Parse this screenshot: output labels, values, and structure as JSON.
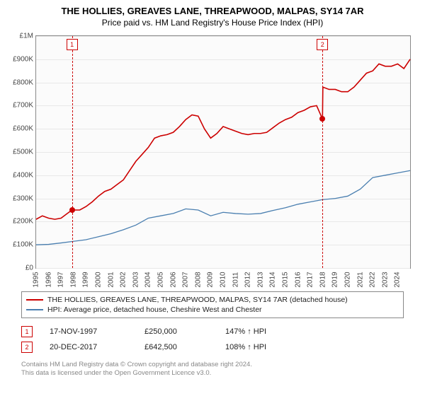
{
  "chart": {
    "type": "line",
    "title": "THE HOLLIES, GREAVES LANE, THREAPWOOD, MALPAS, SY14 7AR",
    "subtitle": "Price paid vs. HM Land Registry's House Price Index (HPI)",
    "background_color": "#ffffff",
    "plot_bg": "#fbfbfb",
    "grid_color": "#e8e8e8",
    "border_color": "#888888",
    "title_fontsize": 13,
    "subtitle_fontsize": 12,
    "tick_fontsize": 10,
    "y": {
      "min": 0,
      "max": 1000000,
      "ticks": [
        0,
        100000,
        200000,
        300000,
        400000,
        500000,
        600000,
        700000,
        800000,
        900000,
        1000000
      ],
      "labels": [
        "£0",
        "£100K",
        "£200K",
        "£300K",
        "£400K",
        "£500K",
        "£600K",
        "£700K",
        "£800K",
        "£900K",
        "£1M"
      ]
    },
    "x": {
      "min": 1995,
      "max": 2025,
      "ticks": [
        1995,
        1996,
        1997,
        1998,
        1999,
        2000,
        2001,
        2002,
        2003,
        2004,
        2005,
        2006,
        2007,
        2008,
        2009,
        2010,
        2011,
        2012,
        2013,
        2014,
        2015,
        2016,
        2017,
        2018,
        2019,
        2020,
        2021,
        2022,
        2023,
        2024
      ]
    },
    "series": [
      {
        "name": "THE HOLLIES, GREAVES LANE, THREAPWOOD, MALPAS, SY14 7AR (detached house)",
        "color": "#cc0000",
        "line_width": 1.6,
        "data": [
          [
            1995,
            210000
          ],
          [
            1995.5,
            225000
          ],
          [
            1996,
            215000
          ],
          [
            1996.5,
            210000
          ],
          [
            1997,
            215000
          ],
          [
            1997.5,
            235000
          ],
          [
            1997.88,
            250000
          ],
          [
            1998.5,
            250000
          ],
          [
            1999,
            265000
          ],
          [
            1999.5,
            285000
          ],
          [
            2000,
            310000
          ],
          [
            2000.5,
            330000
          ],
          [
            2001,
            340000
          ],
          [
            2001.5,
            360000
          ],
          [
            2002,
            380000
          ],
          [
            2002.5,
            420000
          ],
          [
            2003,
            460000
          ],
          [
            2003.5,
            490000
          ],
          [
            2004,
            520000
          ],
          [
            2004.5,
            560000
          ],
          [
            2005,
            570000
          ],
          [
            2005.5,
            575000
          ],
          [
            2006,
            585000
          ],
          [
            2006.5,
            610000
          ],
          [
            2007,
            640000
          ],
          [
            2007.5,
            660000
          ],
          [
            2008,
            655000
          ],
          [
            2008.5,
            600000
          ],
          [
            2009,
            560000
          ],
          [
            2009.5,
            580000
          ],
          [
            2010,
            610000
          ],
          [
            2010.5,
            600000
          ],
          [
            2011,
            590000
          ],
          [
            2011.5,
            580000
          ],
          [
            2012,
            575000
          ],
          [
            2012.5,
            580000
          ],
          [
            2013,
            580000
          ],
          [
            2013.5,
            585000
          ],
          [
            2014,
            605000
          ],
          [
            2014.5,
            625000
          ],
          [
            2015,
            640000
          ],
          [
            2015.5,
            650000
          ],
          [
            2016,
            670000
          ],
          [
            2016.5,
            680000
          ],
          [
            2017,
            695000
          ],
          [
            2017.5,
            700000
          ],
          [
            2017.97,
            642500
          ],
          [
            2018,
            780000
          ],
          [
            2018.5,
            770000
          ],
          [
            2019,
            770000
          ],
          [
            2019.5,
            760000
          ],
          [
            2020,
            760000
          ],
          [
            2020.5,
            780000
          ],
          [
            2021,
            810000
          ],
          [
            2021.5,
            840000
          ],
          [
            2022,
            850000
          ],
          [
            2022.5,
            880000
          ],
          [
            2023,
            870000
          ],
          [
            2023.5,
            870000
          ],
          [
            2024,
            880000
          ],
          [
            2024.5,
            860000
          ],
          [
            2025,
            900000
          ]
        ]
      },
      {
        "name": "HPI: Average price, detached house, Cheshire West and Chester",
        "color": "#4a7fb0",
        "line_width": 1.3,
        "data": [
          [
            1995,
            100000
          ],
          [
            1996,
            102000
          ],
          [
            1997,
            108000
          ],
          [
            1998,
            115000
          ],
          [
            1999,
            122000
          ],
          [
            2000,
            135000
          ],
          [
            2001,
            148000
          ],
          [
            2002,
            165000
          ],
          [
            2003,
            185000
          ],
          [
            2004,
            215000
          ],
          [
            2005,
            225000
          ],
          [
            2006,
            235000
          ],
          [
            2007,
            255000
          ],
          [
            2008,
            250000
          ],
          [
            2009,
            225000
          ],
          [
            2010,
            240000
          ],
          [
            2011,
            235000
          ],
          [
            2012,
            232000
          ],
          [
            2013,
            235000
          ],
          [
            2014,
            248000
          ],
          [
            2015,
            260000
          ],
          [
            2016,
            275000
          ],
          [
            2017,
            285000
          ],
          [
            2018,
            295000
          ],
          [
            2019,
            300000
          ],
          [
            2020,
            310000
          ],
          [
            2021,
            340000
          ],
          [
            2022,
            390000
          ],
          [
            2023,
            400000
          ],
          [
            2024,
            410000
          ],
          [
            2025,
            420000
          ]
        ]
      }
    ],
    "sale_markers": [
      {
        "id": "1",
        "x": 1997.88,
        "y": 250000
      },
      {
        "id": "2",
        "x": 2017.97,
        "y": 642500
      }
    ],
    "marker_dot_color": "#cc0000",
    "marker_box_border": "#cc0000"
  },
  "legend": {
    "items": [
      {
        "color": "#cc0000",
        "label": "THE HOLLIES, GREAVES LANE, THREAPWOOD, MALPAS, SY14 7AR (detached house)"
      },
      {
        "color": "#4a7fb0",
        "label": "HPI: Average price, detached house, Cheshire West and Chester"
      }
    ]
  },
  "sales": [
    {
      "idx": "1",
      "date": "17-NOV-1997",
      "price": "£250,000",
      "delta": "147% ↑ HPI"
    },
    {
      "idx": "2",
      "date": "20-DEC-2017",
      "price": "£642,500",
      "delta": "108% ↑ HPI"
    }
  ],
  "footer": {
    "line1": "Contains HM Land Registry data © Crown copyright and database right 2024.",
    "line2": "This data is licensed under the Open Government Licence v3.0."
  }
}
